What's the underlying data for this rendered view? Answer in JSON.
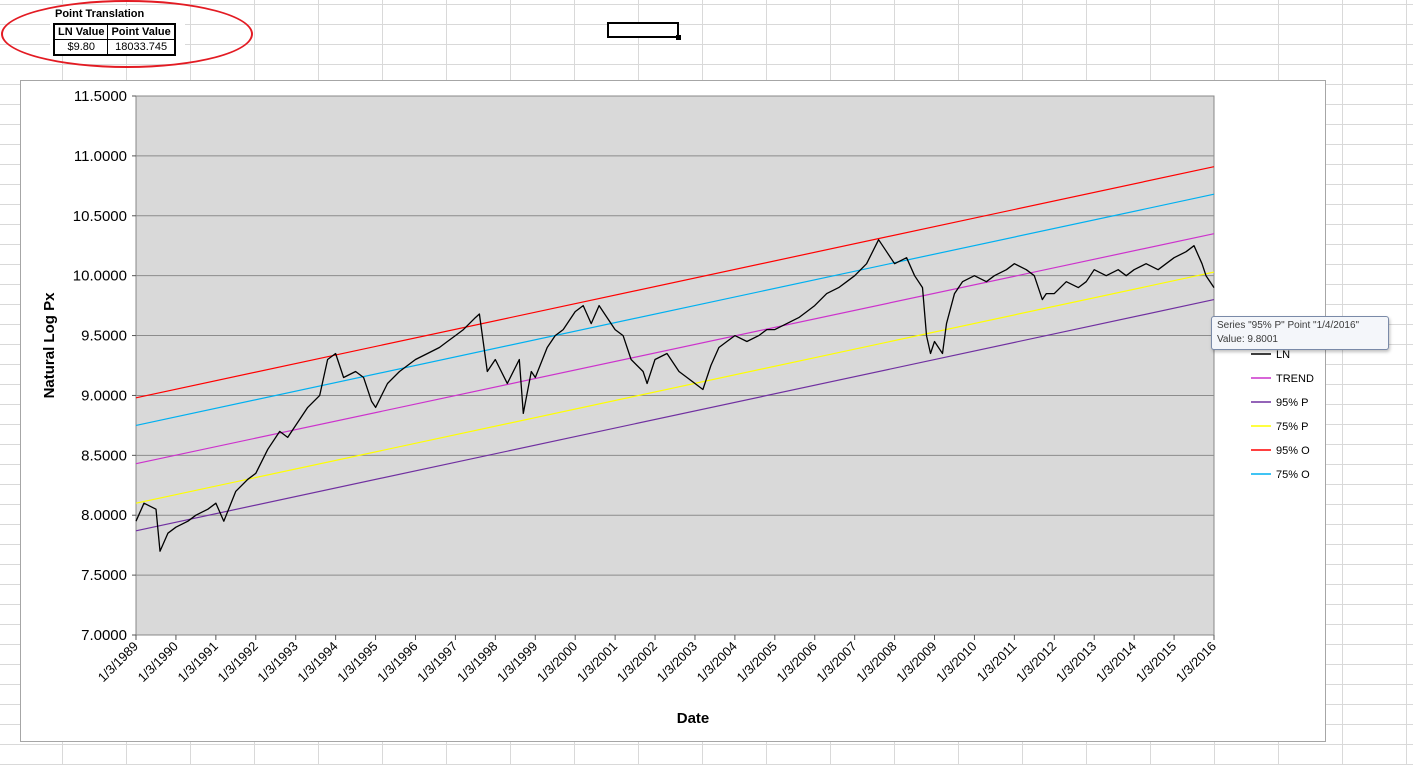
{
  "point_translation": {
    "title": "Point Translation",
    "headers": [
      "LN Value",
      "Point Value"
    ],
    "row": [
      "$9.80",
      "18033.745"
    ]
  },
  "tooltip": {
    "line1": "Series \"95% P\" Point \"1/4/2016\"",
    "line2": "Value: 9.8001"
  },
  "colors": {
    "plot_bg": "#d9d9d9",
    "annotation_circle": "#e31b23"
  },
  "chart_data": {
    "type": "line",
    "xlabel": "Date",
    "ylabel": "Natural Log Px",
    "ylim": [
      7.0,
      11.5
    ],
    "y_ticks": [
      "7.0000",
      "7.5000",
      "8.0000",
      "8.5000",
      "9.0000",
      "9.5000",
      "10.0000",
      "10.5000",
      "11.0000",
      "11.5000"
    ],
    "x_ticks": [
      "1/3/1989",
      "1/3/1990",
      "1/3/1991",
      "1/3/1992",
      "1/3/1993",
      "1/3/1994",
      "1/3/1995",
      "1/3/1996",
      "1/3/1997",
      "1/3/1998",
      "1/3/1999",
      "1/3/2000",
      "1/3/2001",
      "1/3/2002",
      "1/3/2003",
      "1/3/2004",
      "1/3/2005",
      "1/3/2006",
      "1/3/2007",
      "1/3/2008",
      "1/3/2009",
      "1/3/2010",
      "1/3/2011",
      "1/3/2012",
      "1/3/2013",
      "1/3/2014",
      "1/3/2015",
      "1/3/2016"
    ],
    "xlim": [
      1989.0,
      2016.0
    ],
    "grid": true,
    "legend_position": "right",
    "series": [
      {
        "name": "LN",
        "color": "#000000",
        "x": [
          1989.0,
          1989.2,
          1989.5,
          1989.6,
          1989.8,
          1990.0,
          1990.3,
          1990.5,
          1990.8,
          1991.0,
          1991.2,
          1991.5,
          1991.8,
          1992.0,
          1992.3,
          1992.6,
          1992.8,
          1993.0,
          1993.3,
          1993.6,
          1993.8,
          1994.0,
          1994.2,
          1994.5,
          1994.7,
          1994.9,
          1995.0,
          1995.3,
          1995.6,
          1995.8,
          1996.0,
          1996.3,
          1996.6,
          1996.8,
          1997.0,
          1997.2,
          1997.5,
          1997.6,
          1997.8,
          1998.0,
          1998.3,
          1998.6,
          1998.7,
          1998.9,
          1999.0,
          1999.3,
          1999.5,
          1999.7,
          2000.0,
          2000.2,
          2000.4,
          2000.6,
          2000.8,
          2001.0,
          2001.2,
          2001.4,
          2001.7,
          2001.8,
          2002.0,
          2002.3,
          2002.6,
          2002.8,
          2003.0,
          2003.2,
          2003.4,
          2003.6,
          2003.8,
          2004.0,
          2004.3,
          2004.6,
          2004.8,
          2005.0,
          2005.3,
          2005.6,
          2005.8,
          2006.0,
          2006.3,
          2006.6,
          2006.8,
          2007.0,
          2007.3,
          2007.6,
          2007.8,
          2008.0,
          2008.3,
          2008.5,
          2008.7,
          2008.8,
          2008.9,
          2009.0,
          2009.2,
          2009.3,
          2009.5,
          2009.7,
          2010.0,
          2010.3,
          2010.5,
          2010.8,
          2011.0,
          2011.3,
          2011.5,
          2011.7,
          2011.8,
          2012.0,
          2012.3,
          2012.6,
          2012.8,
          2013.0,
          2013.3,
          2013.6,
          2013.8,
          2014.0,
          2014.3,
          2014.6,
          2014.8,
          2015.0,
          2015.3,
          2015.5,
          2015.7,
          2015.8,
          2016.0
        ],
        "y": [
          7.95,
          8.1,
          8.05,
          7.7,
          7.85,
          7.9,
          7.95,
          8.0,
          8.05,
          8.1,
          7.95,
          8.2,
          8.3,
          8.35,
          8.55,
          8.7,
          8.65,
          8.75,
          8.9,
          9.0,
          9.3,
          9.35,
          9.15,
          9.2,
          9.15,
          8.95,
          8.9,
          9.1,
          9.2,
          9.25,
          9.3,
          9.35,
          9.4,
          9.45,
          9.5,
          9.55,
          9.65,
          9.68,
          9.2,
          9.3,
          9.1,
          9.3,
          8.85,
          9.2,
          9.15,
          9.4,
          9.5,
          9.55,
          9.7,
          9.75,
          9.6,
          9.75,
          9.65,
          9.55,
          9.5,
          9.3,
          9.2,
          9.1,
          9.3,
          9.35,
          9.2,
          9.15,
          9.1,
          9.05,
          9.25,
          9.4,
          9.45,
          9.5,
          9.45,
          9.5,
          9.55,
          9.55,
          9.6,
          9.65,
          9.7,
          9.75,
          9.85,
          9.9,
          9.95,
          10.0,
          10.1,
          10.3,
          10.2,
          10.1,
          10.15,
          10.0,
          9.9,
          9.5,
          9.35,
          9.45,
          9.35,
          9.6,
          9.85,
          9.95,
          10.0,
          9.95,
          10.0,
          10.05,
          10.1,
          10.05,
          10.0,
          9.8,
          9.85,
          9.85,
          9.95,
          9.9,
          9.95,
          10.05,
          10.0,
          10.05,
          10.0,
          10.05,
          10.1,
          10.05,
          10.1,
          10.15,
          10.2,
          10.25,
          10.1,
          10.0,
          9.9
        ]
      },
      {
        "name": "TREND",
        "color": "#cc33cc",
        "x": [
          1989.0,
          2016.0
        ],
        "y": [
          8.43,
          10.35
        ]
      },
      {
        "name": "95% P",
        "color": "#7030a0",
        "x": [
          1989.0,
          2016.0
        ],
        "y": [
          7.87,
          9.8001
        ]
      },
      {
        "name": "75% P",
        "color": "#ffff00",
        "x": [
          1989.0,
          2016.0
        ],
        "y": [
          8.1,
          10.03
        ]
      },
      {
        "name": "95% O",
        "color": "#ff0000",
        "x": [
          1989.0,
          2016.0
        ],
        "y": [
          8.98,
          10.91
        ]
      },
      {
        "name": "75% O",
        "color": "#00b0f0",
        "x": [
          1989.0,
          2016.0
        ],
        "y": [
          8.75,
          10.68
        ]
      }
    ]
  }
}
